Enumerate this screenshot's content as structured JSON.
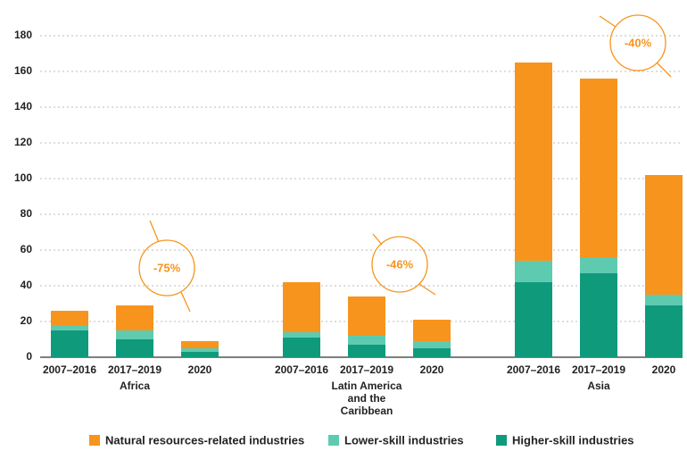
{
  "chart_data": {
    "type": "stacked_bar",
    "categories": [
      "2007–2016",
      "2017–2019",
      "2020",
      "2007–2016",
      "2017–2019",
      "2020",
      "2007–2016",
      "2017–2019",
      "2020"
    ],
    "groups": [
      "Africa",
      "Latin America and the Caribbean",
      "Asia"
    ],
    "series": [
      {
        "name": "Natural resources-related industries",
        "color": "#f7941d",
        "values": [
          8,
          14,
          4,
          28,
          22,
          12,
          111,
          100,
          67
        ]
      },
      {
        "name": "Lower-skill industries",
        "color": "#5ecbb0",
        "values": [
          3,
          5,
          2,
          3,
          5,
          4,
          12,
          9,
          6
        ]
      },
      {
        "name": "Higher-skill industries",
        "color": "#0f9a7c",
        "values": [
          15,
          10,
          3,
          11,
          7,
          5,
          42,
          47,
          29
        ]
      }
    ],
    "annotations": [
      "-75%",
      "-46%",
      "-40%"
    ],
    "ylim": [
      0,
      180
    ],
    "yticks": [
      0,
      20,
      40,
      60,
      80,
      100,
      120,
      140,
      160,
      180
    ],
    "grid": true
  }
}
